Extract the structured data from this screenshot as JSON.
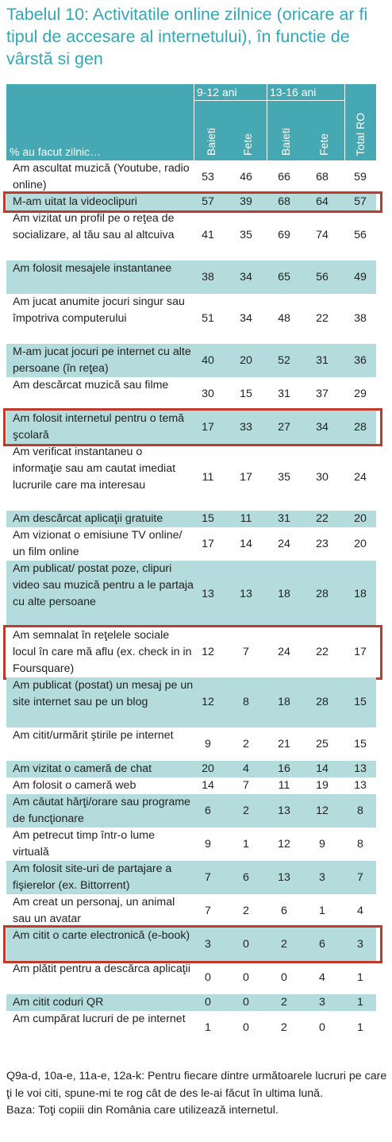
{
  "title": "Tabelul 10: Activitatile online zilnice (oricare ar fi tipul de accesare al internetului), în functie de vârstă si gen",
  "header": {
    "group1": "9-12 ani",
    "group2": "13-16 ani",
    "columns": [
      "Baieti",
      "Fete",
      "Baieti",
      "Fete",
      "Total RO"
    ],
    "subheader": "% au facut zilnic…"
  },
  "rows": [
    {
      "label": "Am ascultat muzică (Youtube, radio online)",
      "values": [
        "53",
        "46",
        "66",
        "68",
        "59"
      ]
    },
    {
      "label": "M-am uitat la videoclipuri",
      "values": [
        "57",
        "39",
        "68",
        "64",
        "57"
      ]
    },
    {
      "label": "Am vizitat un profil pe o reţea de socializare, al tău sau al altcuiva",
      "values": [
        "41",
        "35",
        "69",
        "74",
        "56"
      ]
    },
    {
      "label": "Am folosit mesajele instantanee",
      "values": [
        "38",
        "34",
        "65",
        "56",
        "49"
      ]
    },
    {
      "label": "Am jucat anumite jocuri singur sau împotriva computerului",
      "values": [
        "51",
        "34",
        "48",
        "22",
        "38"
      ]
    },
    {
      "label": "M-am jucat jocuri pe internet cu alte persoane (în reţea)",
      "values": [
        "40",
        "20",
        "52",
        "31",
        "36"
      ]
    },
    {
      "label": "Am descărcat muzică sau filme",
      "values": [
        "30",
        "15",
        "31",
        "37",
        "29"
      ]
    },
    {
      "label": "Am folosit internetul pentru o temă şcolară",
      "values": [
        "17",
        "33",
        "27",
        "34",
        "28"
      ]
    },
    {
      "label": "Am verificat instantaneu o informaţie sau am cautat imediat lucrurile care ma interesau",
      "values": [
        "11",
        "17",
        "35",
        "30",
        "24"
      ]
    },
    {
      "label": "Am descărcat aplicaţii gratuite",
      "values": [
        "15",
        "11",
        "31",
        "22",
        "20"
      ]
    },
    {
      "label": "Am vizionat o emisiune TV online/ un film online",
      "values": [
        "17",
        "14",
        "24",
        "23",
        "20"
      ]
    },
    {
      "label": "Am publicat/ postat poze, clipuri video sau muzică pentru a le partaja cu alte persoane",
      "values": [
        "13",
        "13",
        "18",
        "28",
        "18"
      ]
    },
    {
      "label": "Am semnalat în reţelele sociale locul în care mă aflu (ex. check in in  Foursquare)",
      "values": [
        "12",
        "7",
        "24",
        "22",
        "17"
      ]
    },
    {
      "label": "Am publicat (postat) un mesaj pe un site internet sau pe un blog",
      "values": [
        "12",
        "8",
        "18",
        "28",
        "15"
      ]
    },
    {
      "label": "Am citit/urmărit ştirile pe internet",
      "values": [
        "9",
        "2",
        "21",
        "25",
        "15"
      ]
    },
    {
      "label": "Am vizitat o cameră de chat",
      "values": [
        "20",
        "4",
        "16",
        "14",
        "13"
      ]
    },
    {
      "label": "Am folosit o cameră web",
      "values": [
        "14",
        "7",
        "11",
        "19",
        "13"
      ]
    },
    {
      "label": "Am căutat hărţi/orare sau programe de funcţionare",
      "values": [
        "6",
        "2",
        "13",
        "12",
        "8"
      ]
    },
    {
      "label": "Am petrecut timp într-o lume virtuală",
      "values": [
        "9",
        "1",
        "12",
        "9",
        "8"
      ]
    },
    {
      "label": "Am folosit site-uri de partajare a fişierelor (ex. Bittorrent)",
      "values": [
        "7",
        "6",
        "13",
        "3",
        "7"
      ]
    },
    {
      "label": "Am creat un personaj, un animal sau un avatar",
      "values": [
        "7",
        "2",
        "6",
        "1",
        "4"
      ]
    },
    {
      "label": "Am citit o carte electronică (e-book)",
      "values": [
        "3",
        "0",
        "2",
        "6",
        "3"
      ]
    },
    {
      "label": "Am plătit pentru a descărca aplicaţii",
      "values": [
        "0",
        "0",
        "0",
        "4",
        "1"
      ]
    },
    {
      "label": "Am citit coduri QR",
      "values": [
        "0",
        "0",
        "2",
        "3",
        "1"
      ]
    },
    {
      "label": "Am cumpărat lucruri de pe internet",
      "values": [
        "1",
        "0",
        "2",
        "0",
        "1"
      ]
    }
  ],
  "highlight_color": "#c0392b",
  "footnote": "Q9a-d, 10a-e, 11a-e, 12a-k: Pentru fiecare dintre următoarele lucruri pe care ţi le voi citi, spune-mi te rog cât de des le-ai făcut în ultima lună.",
  "base": "Baza: Toţi copiii din România care utilizează internetul."
}
